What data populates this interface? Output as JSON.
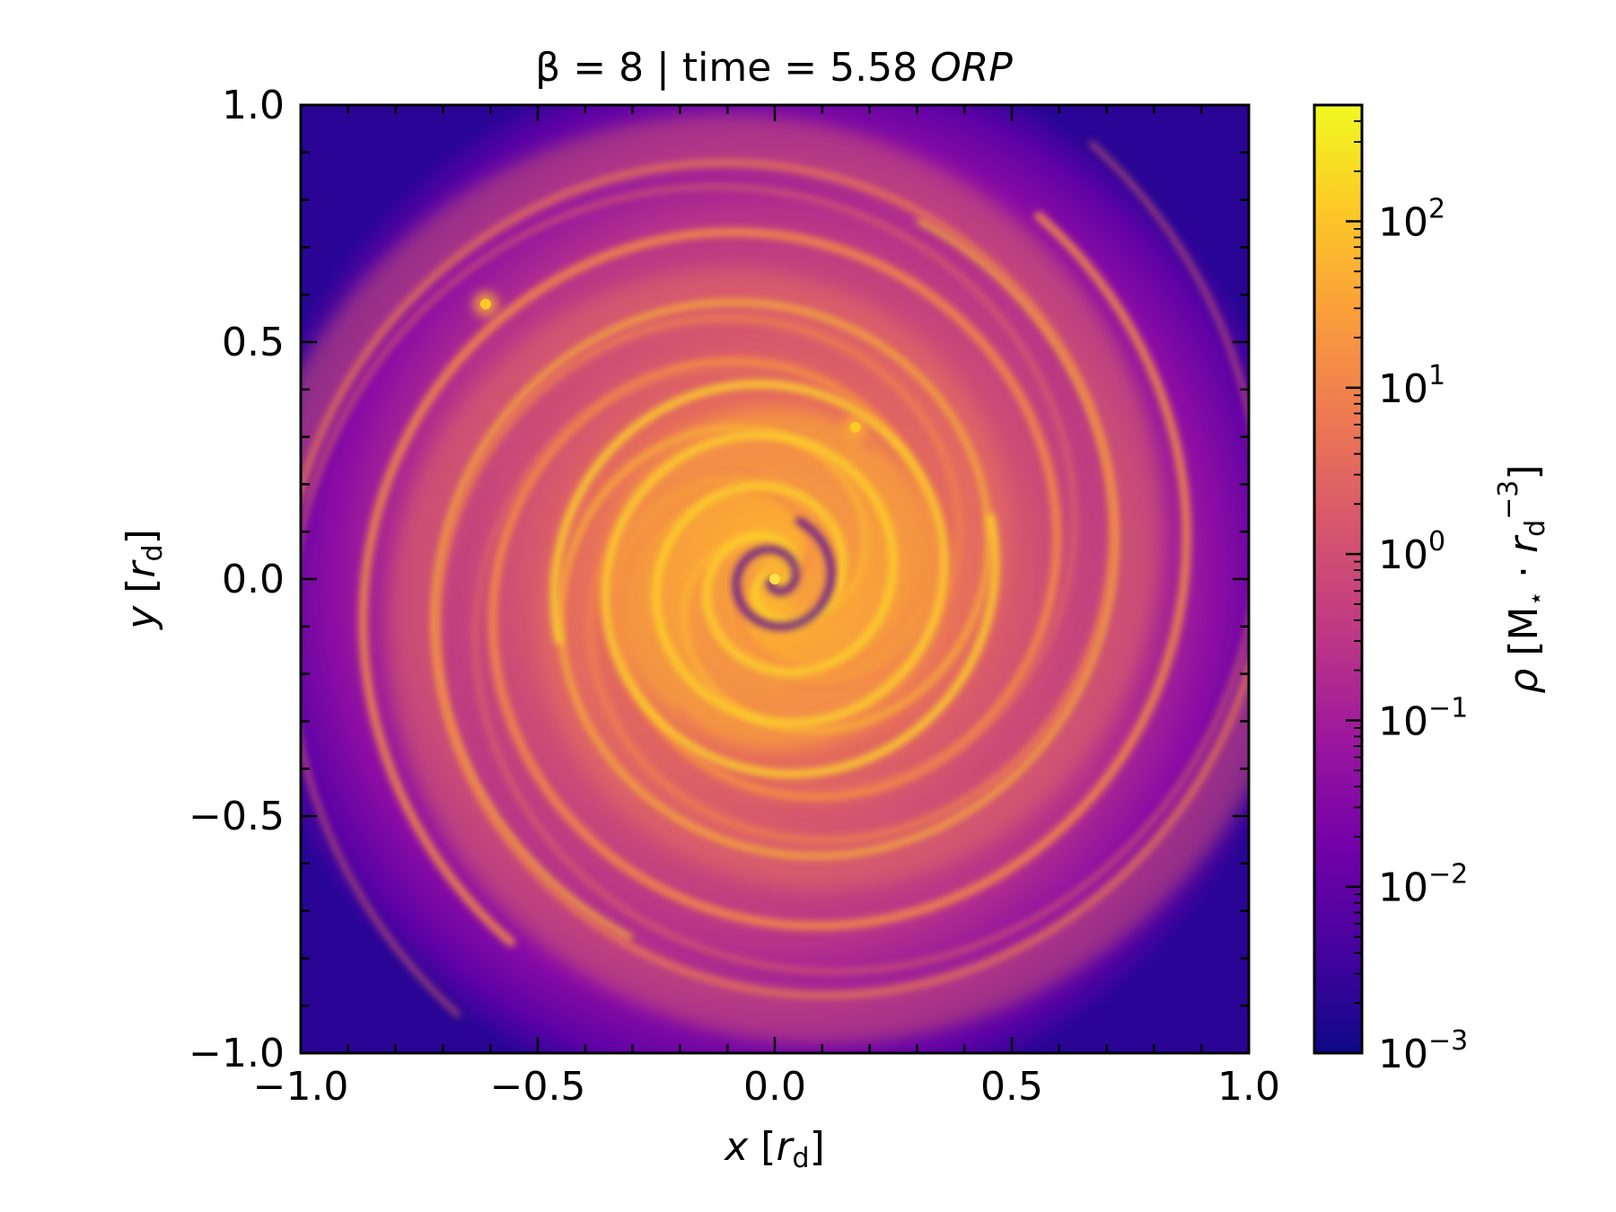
{
  "chart_data": {
    "type": "heatmap",
    "title": {
      "prefix": "β = 8 | time = 5.58 ",
      "unit": "ORP"
    },
    "xlabel": {
      "var": "x",
      "unit_base": "r",
      "unit_sub": "d"
    },
    "ylabel": {
      "var": "y",
      "unit_base": "r",
      "unit_sub": "d"
    },
    "xlim": [
      -1.0,
      1.0
    ],
    "ylim": [
      -1.0,
      1.0
    ],
    "x_ticks": [
      "−1.0",
      "−0.5",
      "0.0",
      "0.5",
      "1.0"
    ],
    "y_ticks": [
      "−1.0",
      "−0.5",
      "0.0",
      "0.5",
      "1.0"
    ],
    "colormap": "plasma",
    "colorbar": {
      "scale": "log",
      "range": [
        0.001,
        500
      ],
      "label": {
        "symbol": "ρ",
        "unit_text": "M",
        "star": "⋆",
        "dot": "·",
        "r": "r",
        "sub": "d",
        "exp": "−3"
      },
      "ticks": [
        {
          "value": 100,
          "base": "10",
          "exp": "2"
        },
        {
          "value": 10,
          "base": "10",
          "exp": "1"
        },
        {
          "value": 1,
          "base": "10",
          "exp": "0"
        },
        {
          "value": 0.1,
          "base": "10",
          "exp": "−1"
        },
        {
          "value": 0.01,
          "base": "10",
          "exp": "−2"
        },
        {
          "value": 0.001,
          "base": "10",
          "exp": "−3"
        }
      ]
    },
    "features": {
      "spiral_arms": 2,
      "central_core_peak": 300,
      "edge_density": 0.002,
      "clumps": [
        {
          "x": -0.61,
          "y": 0.58,
          "density": 60
        },
        {
          "x": 0.17,
          "y": 0.32,
          "density": 20
        }
      ]
    }
  },
  "colors": {
    "plasma": [
      "#0d0887",
      "#47039f",
      "#7301a8",
      "#9c179e",
      "#bd3786",
      "#d8576b",
      "#ed7953",
      "#fa9e3b",
      "#fdc926",
      "#f0f921"
    ],
    "axes": "#000000",
    "background": "#ffffff"
  }
}
